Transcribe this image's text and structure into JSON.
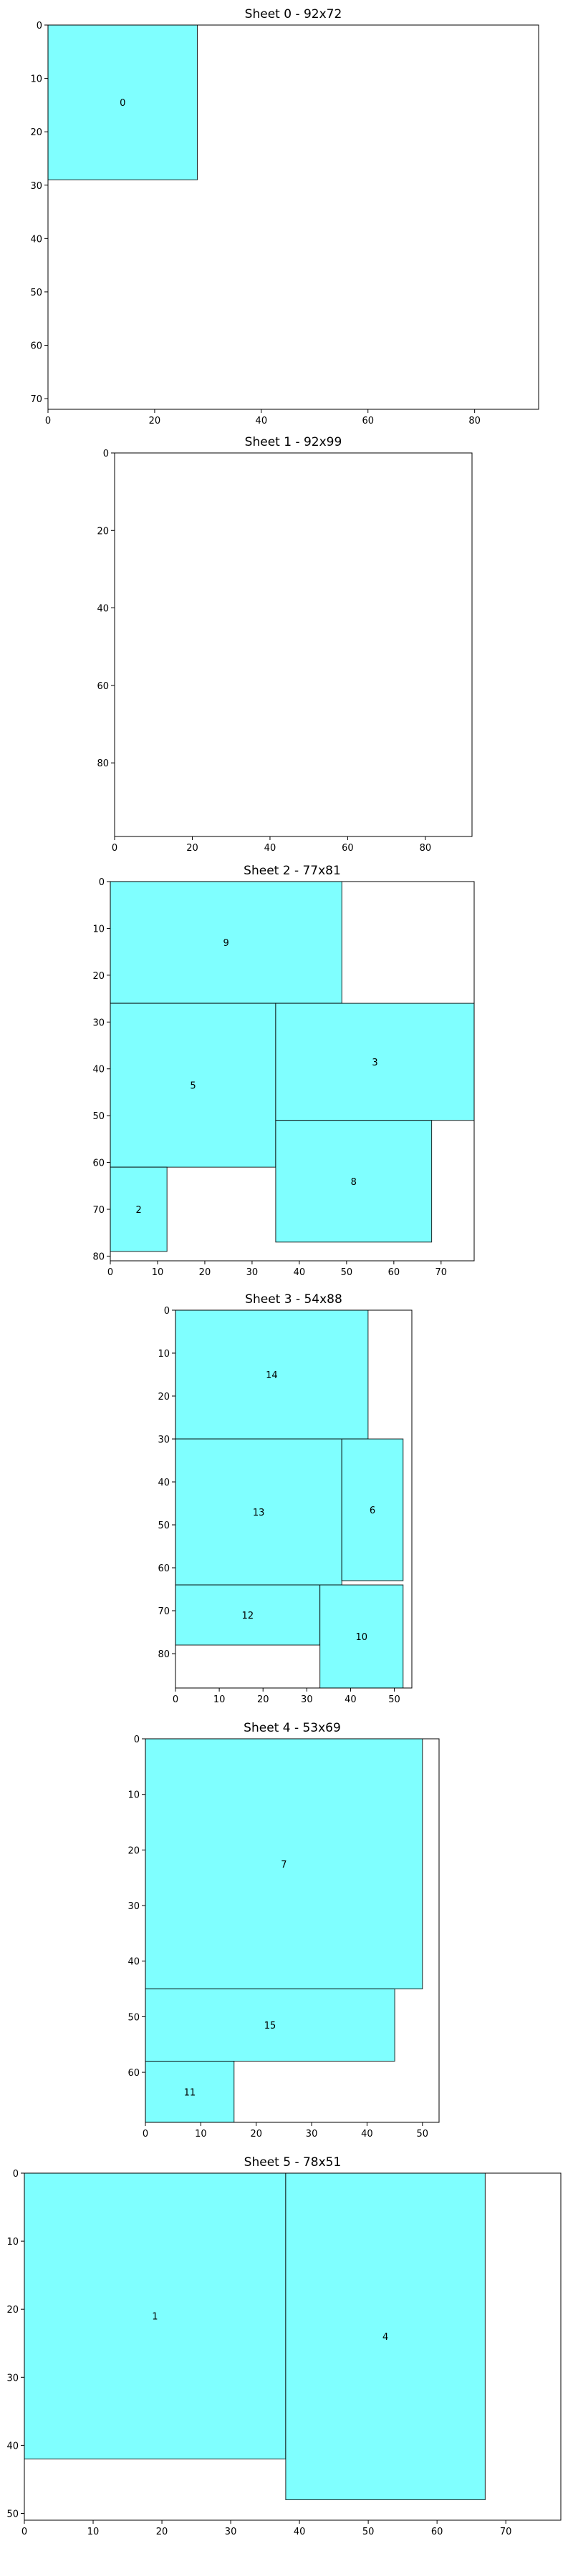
{
  "colors": {
    "piece_fill": "#7fffff",
    "edge": "#000000",
    "background": "#ffffff"
  },
  "chart_data": [
    {
      "type": "bar",
      "title": "Sheet 0 - 92x72",
      "sheet_size": [
        92,
        72
      ],
      "x_ticks": [
        0,
        20,
        40,
        60,
        80
      ],
      "y_ticks": [
        0,
        10,
        20,
        30,
        40,
        50,
        60,
        70
      ],
      "y_inverted": true,
      "pieces": [
        {
          "id": "0",
          "x": 0,
          "y": 0,
          "w": 28,
          "h": 29
        }
      ]
    },
    {
      "type": "bar",
      "title": "Sheet 1 - 92x99",
      "sheet_size": [
        92,
        99
      ],
      "x_ticks": [
        0,
        20,
        40,
        60,
        80
      ],
      "y_ticks": [
        0,
        20,
        40,
        60,
        80
      ],
      "y_inverted": true,
      "pieces": []
    },
    {
      "type": "bar",
      "title": "Sheet 2 - 77x81",
      "sheet_size": [
        77,
        81
      ],
      "x_ticks": [
        0,
        10,
        20,
        30,
        40,
        50,
        60,
        70
      ],
      "y_ticks": [
        0,
        10,
        20,
        30,
        40,
        50,
        60,
        70,
        80
      ],
      "y_inverted": true,
      "pieces": [
        {
          "id": "9",
          "x": 0,
          "y": 0,
          "w": 49,
          "h": 26
        },
        {
          "id": "5",
          "x": 0,
          "y": 26,
          "w": 35,
          "h": 35
        },
        {
          "id": "3",
          "x": 35,
          "y": 26,
          "w": 42,
          "h": 25
        },
        {
          "id": "8",
          "x": 35,
          "y": 51,
          "w": 33,
          "h": 26
        },
        {
          "id": "2",
          "x": 0,
          "y": 61,
          "w": 12,
          "h": 18
        }
      ]
    },
    {
      "type": "bar",
      "title": "Sheet 3 - 54x88",
      "sheet_size": [
        54,
        88
      ],
      "x_ticks": [
        0,
        10,
        20,
        30,
        40,
        50
      ],
      "y_ticks": [
        0,
        10,
        20,
        30,
        40,
        50,
        60,
        70,
        80
      ],
      "y_inverted": true,
      "pieces": [
        {
          "id": "14",
          "x": 0,
          "y": 0,
          "w": 44,
          "h": 30
        },
        {
          "id": "13",
          "x": 0,
          "y": 30,
          "w": 38,
          "h": 34
        },
        {
          "id": "6",
          "x": 38,
          "y": 30,
          "w": 14,
          "h": 33
        },
        {
          "id": "12",
          "x": 0,
          "y": 64,
          "w": 33,
          "h": 14
        },
        {
          "id": "10",
          "x": 33,
          "y": 64,
          "w": 19,
          "h": 24
        }
      ]
    },
    {
      "type": "bar",
      "title": "Sheet 4 - 53x69",
      "sheet_size": [
        53,
        69
      ],
      "x_ticks": [
        0,
        10,
        20,
        30,
        40,
        50
      ],
      "y_ticks": [
        0,
        10,
        20,
        30,
        40,
        50,
        60
      ],
      "y_inverted": true,
      "pieces": [
        {
          "id": "7",
          "x": 0,
          "y": 0,
          "w": 50,
          "h": 45
        },
        {
          "id": "15",
          "x": 0,
          "y": 45,
          "w": 45,
          "h": 13
        },
        {
          "id": "11",
          "x": 0,
          "y": 58,
          "w": 16,
          "h": 11
        }
      ]
    },
    {
      "type": "bar",
      "title": "Sheet 5 - 78x51",
      "sheet_size": [
        78,
        51
      ],
      "x_ticks": [
        0,
        10,
        20,
        30,
        40,
        50,
        60,
        70
      ],
      "y_ticks": [
        0,
        10,
        20,
        30,
        40,
        50
      ],
      "y_inverted": true,
      "pieces": [
        {
          "id": "1",
          "x": 0,
          "y": 0,
          "w": 38,
          "h": 42
        },
        {
          "id": "4",
          "x": 38,
          "y": 0,
          "w": 29,
          "h": 48
        }
      ]
    }
  ]
}
